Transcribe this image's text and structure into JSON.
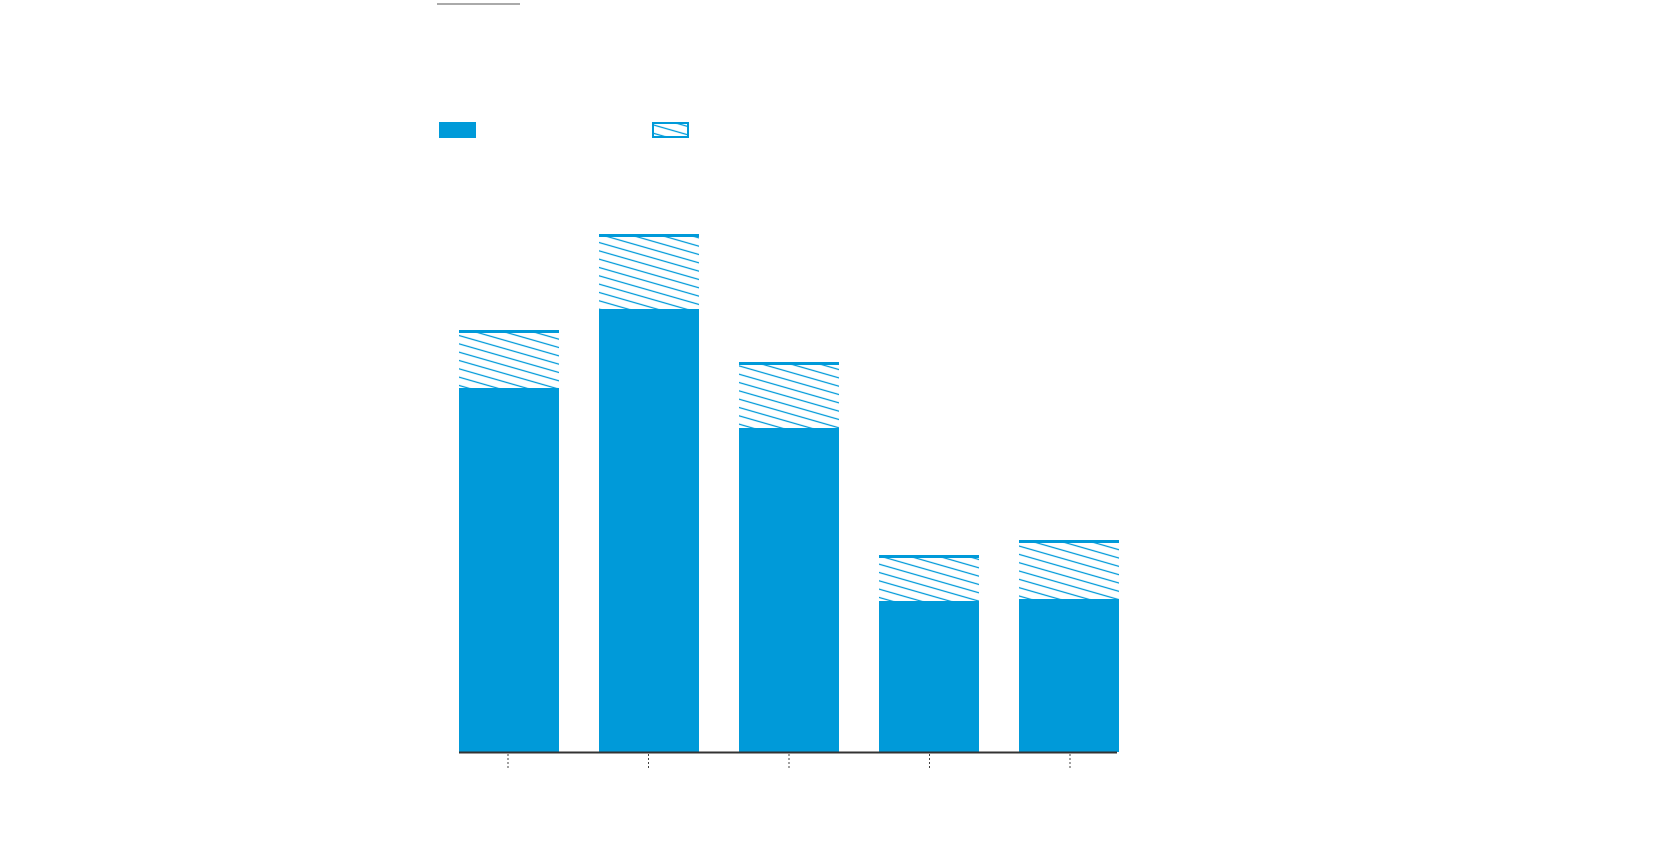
{
  "chart_data": {
    "type": "stacked-bar",
    "categories": [
      null,
      null,
      null,
      null,
      null
    ],
    "series": [
      {
        "color": "#009ad9",
        "values": [
          364,
          443,
          324,
          151,
          153
        ]
      },
      {
        "color": "#009ad9",
        "pattern": "hatch",
        "values": [
          58,
          75,
          66,
          46,
          59
        ]
      }
    ],
    "ylim": [
      0,
      520
    ]
  }
}
